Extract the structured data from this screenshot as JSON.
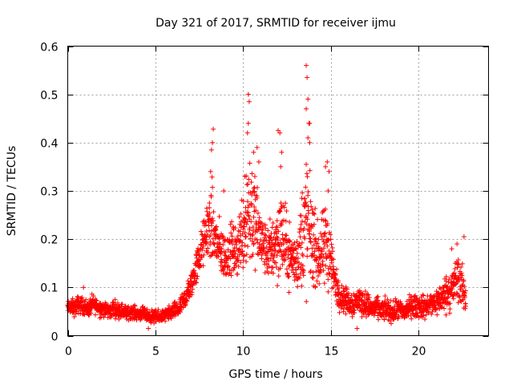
{
  "chart_data": {
    "type": "scatter",
    "title": "Day 321 of 2017, SRMTID for receiver ijmu",
    "xlabel": "GPS time / hours",
    "ylabel": "SRMTID / TECUs",
    "xlim": [
      0,
      24
    ],
    "ylim": [
      0,
      0.6
    ],
    "x_ticks": [
      0,
      5,
      10,
      15,
      20
    ],
    "x_tick_labels": [
      "0",
      "5",
      "10",
      "15",
      "20"
    ],
    "y_ticks": [
      0,
      0.1,
      0.2,
      0.3,
      0.4,
      0.5,
      0.6
    ],
    "y_tick_labels": [
      "0",
      "0.1",
      "0.2",
      "0.3",
      "0.4",
      "0.5",
      "0.6"
    ],
    "grid": true,
    "marker": "+",
    "marker_color": "#ff0000",
    "series": [
      {
        "name": "SRMTID",
        "x": [
          0.0,
          0.2,
          0.4,
          0.6,
          0.8,
          1.0,
          1.2,
          1.4,
          1.6,
          1.8,
          2.0,
          2.2,
          2.4,
          2.6,
          2.8,
          3.0,
          3.2,
          3.4,
          3.6,
          3.8,
          4.0,
          4.2,
          4.4,
          4.6,
          4.8,
          5.0,
          5.2,
          5.4,
          5.6,
          5.8,
          6.0,
          6.2,
          6.4,
          6.6,
          6.8,
          7.0,
          7.2,
          7.4,
          7.6,
          7.8,
          8.0,
          8.2,
          8.4,
          8.6,
          8.8,
          9.0,
          9.2,
          9.4,
          9.6,
          9.8,
          10.0,
          10.2,
          10.4,
          10.6,
          10.8,
          11.0,
          11.2,
          11.4,
          11.6,
          11.8,
          12.0,
          12.2,
          12.4,
          12.6,
          12.8,
          13.0,
          13.2,
          13.4,
          13.6,
          13.8,
          14.0,
          14.2,
          14.4,
          14.6,
          14.8,
          15.0,
          15.2,
          15.4,
          15.6,
          15.8,
          16.0,
          16.2,
          16.4,
          16.6,
          16.8,
          17.0,
          17.2,
          17.4,
          17.6,
          17.8,
          18.0,
          18.2,
          18.4,
          18.6,
          18.8,
          19.0,
          19.2,
          19.4,
          19.6,
          19.8,
          20.0,
          20.2,
          20.4,
          20.6,
          20.8,
          21.0,
          21.2,
          21.4,
          21.6,
          21.8,
          22.0,
          22.2,
          22.4,
          22.6,
          22.7
        ],
        "y": [
          0.058,
          0.06,
          0.057,
          0.065,
          0.062,
          0.06,
          0.055,
          0.066,
          0.063,
          0.058,
          0.056,
          0.052,
          0.05,
          0.058,
          0.054,
          0.052,
          0.05,
          0.046,
          0.05,
          0.048,
          0.045,
          0.047,
          0.043,
          0.041,
          0.04,
          0.039,
          0.038,
          0.041,
          0.043,
          0.046,
          0.05,
          0.053,
          0.058,
          0.07,
          0.085,
          0.1,
          0.125,
          0.15,
          0.175,
          0.2,
          0.225,
          0.23,
          0.2,
          0.185,
          0.17,
          0.16,
          0.175,
          0.18,
          0.165,
          0.2,
          0.22,
          0.26,
          0.27,
          0.25,
          0.22,
          0.2,
          0.185,
          0.17,
          0.18,
          0.19,
          0.2,
          0.21,
          0.19,
          0.17,
          0.16,
          0.15,
          0.17,
          0.21,
          0.23,
          0.22,
          0.19,
          0.17,
          0.16,
          0.18,
          0.19,
          0.16,
          0.12,
          0.09,
          0.08,
          0.075,
          0.07,
          0.065,
          0.07,
          0.075,
          0.068,
          0.066,
          0.06,
          0.055,
          0.058,
          0.054,
          0.052,
          0.056,
          0.05,
          0.048,
          0.055,
          0.052,
          0.05,
          0.057,
          0.062,
          0.06,
          0.062,
          0.06,
          0.058,
          0.063,
          0.066,
          0.07,
          0.075,
          0.08,
          0.09,
          0.095,
          0.1,
          0.12,
          0.11,
          0.09,
          0.075
        ],
        "spread": [
          0.012,
          0.015,
          0.016,
          0.017,
          0.016,
          0.016,
          0.016,
          0.017,
          0.016,
          0.016,
          0.016,
          0.015,
          0.015,
          0.016,
          0.015,
          0.015,
          0.014,
          0.013,
          0.013,
          0.013,
          0.012,
          0.013,
          0.012,
          0.012,
          0.012,
          0.012,
          0.012,
          0.012,
          0.013,
          0.014,
          0.015,
          0.016,
          0.018,
          0.02,
          0.022,
          0.025,
          0.03,
          0.035,
          0.04,
          0.045,
          0.06,
          0.08,
          0.06,
          0.05,
          0.05,
          0.045,
          0.045,
          0.05,
          0.05,
          0.06,
          0.08,
          0.12,
          0.13,
          0.1,
          0.08,
          0.06,
          0.05,
          0.05,
          0.06,
          0.07,
          0.08,
          0.09,
          0.07,
          0.06,
          0.05,
          0.05,
          0.07,
          0.12,
          0.14,
          0.1,
          0.08,
          0.06,
          0.06,
          0.08,
          0.09,
          0.06,
          0.04,
          0.03,
          0.025,
          0.025,
          0.025,
          0.025,
          0.025,
          0.025,
          0.025,
          0.024,
          0.023,
          0.02,
          0.02,
          0.02,
          0.02,
          0.022,
          0.02,
          0.02,
          0.02,
          0.02,
          0.02,
          0.02,
          0.022,
          0.022,
          0.022,
          0.022,
          0.022,
          0.022,
          0.024,
          0.025,
          0.028,
          0.03,
          0.035,
          0.04,
          0.04,
          0.05,
          0.045,
          0.035,
          0.025
        ],
        "peaks": [
          {
            "x": 8.3,
            "y": 0.428
          },
          {
            "x": 8.25,
            "y": 0.4
          },
          {
            "x": 8.2,
            "y": 0.385
          },
          {
            "x": 8.15,
            "y": 0.34
          },
          {
            "x": 10.3,
            "y": 0.5
          },
          {
            "x": 10.35,
            "y": 0.485
          },
          {
            "x": 10.3,
            "y": 0.44
          },
          {
            "x": 10.25,
            "y": 0.42
          },
          {
            "x": 10.6,
            "y": 0.38
          },
          {
            "x": 10.8,
            "y": 0.39
          },
          {
            "x": 10.9,
            "y": 0.36
          },
          {
            "x": 12.0,
            "y": 0.425
          },
          {
            "x": 12.1,
            "y": 0.42
          },
          {
            "x": 12.2,
            "y": 0.38
          },
          {
            "x": 12.15,
            "y": 0.35
          },
          {
            "x": 13.6,
            "y": 0.56
          },
          {
            "x": 13.65,
            "y": 0.535
          },
          {
            "x": 13.7,
            "y": 0.49
          },
          {
            "x": 13.6,
            "y": 0.47
          },
          {
            "x": 13.75,
            "y": 0.44
          },
          {
            "x": 13.8,
            "y": 0.44
          },
          {
            "x": 13.7,
            "y": 0.41
          },
          {
            "x": 13.8,
            "y": 0.4
          },
          {
            "x": 13.6,
            "y": 0.355
          },
          {
            "x": 14.8,
            "y": 0.36
          },
          {
            "x": 14.7,
            "y": 0.35
          },
          {
            "x": 14.9,
            "y": 0.34
          },
          {
            "x": 14.85,
            "y": 0.3
          },
          {
            "x": 8.9,
            "y": 0.3
          },
          {
            "x": 10.1,
            "y": 0.33
          },
          {
            "x": 22.6,
            "y": 0.205
          },
          {
            "x": 22.2,
            "y": 0.19
          },
          {
            "x": 21.9,
            "y": 0.18
          },
          {
            "x": 0.9,
            "y": 0.1
          },
          {
            "x": 4.6,
            "y": 0.015
          },
          {
            "x": 16.5,
            "y": 0.015
          }
        ]
      }
    ]
  }
}
